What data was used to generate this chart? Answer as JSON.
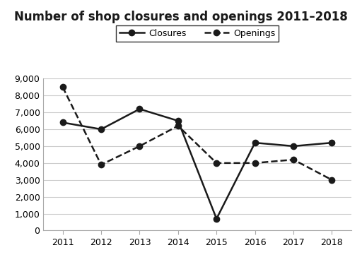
{
  "title": "Number of shop closures and openings 2011–2018",
  "years": [
    2011,
    2012,
    2013,
    2014,
    2015,
    2016,
    2017,
    2018
  ],
  "closures": [
    6400,
    6000,
    7200,
    6500,
    700,
    5200,
    5000,
    5200
  ],
  "openings": [
    8500,
    3900,
    5000,
    6200,
    4000,
    4000,
    4200,
    3000
  ],
  "closures_label": "Closures",
  "openings_label": "Openings",
  "line_color": "#1a1a1a",
  "ylim": [
    0,
    9000
  ],
  "yticks": [
    0,
    1000,
    2000,
    3000,
    4000,
    5000,
    6000,
    7000,
    8000,
    9000
  ],
  "ytick_labels": [
    "0",
    "1,000",
    "2,000",
    "3,000",
    "4,000",
    "5,000",
    "6,000",
    "7,000",
    "8,000",
    "9,000"
  ],
  "background_color": "#ffffff",
  "title_fontsize": 12,
  "axis_fontsize": 9,
  "legend_fontsize": 9,
  "grid_color": "#cccccc"
}
